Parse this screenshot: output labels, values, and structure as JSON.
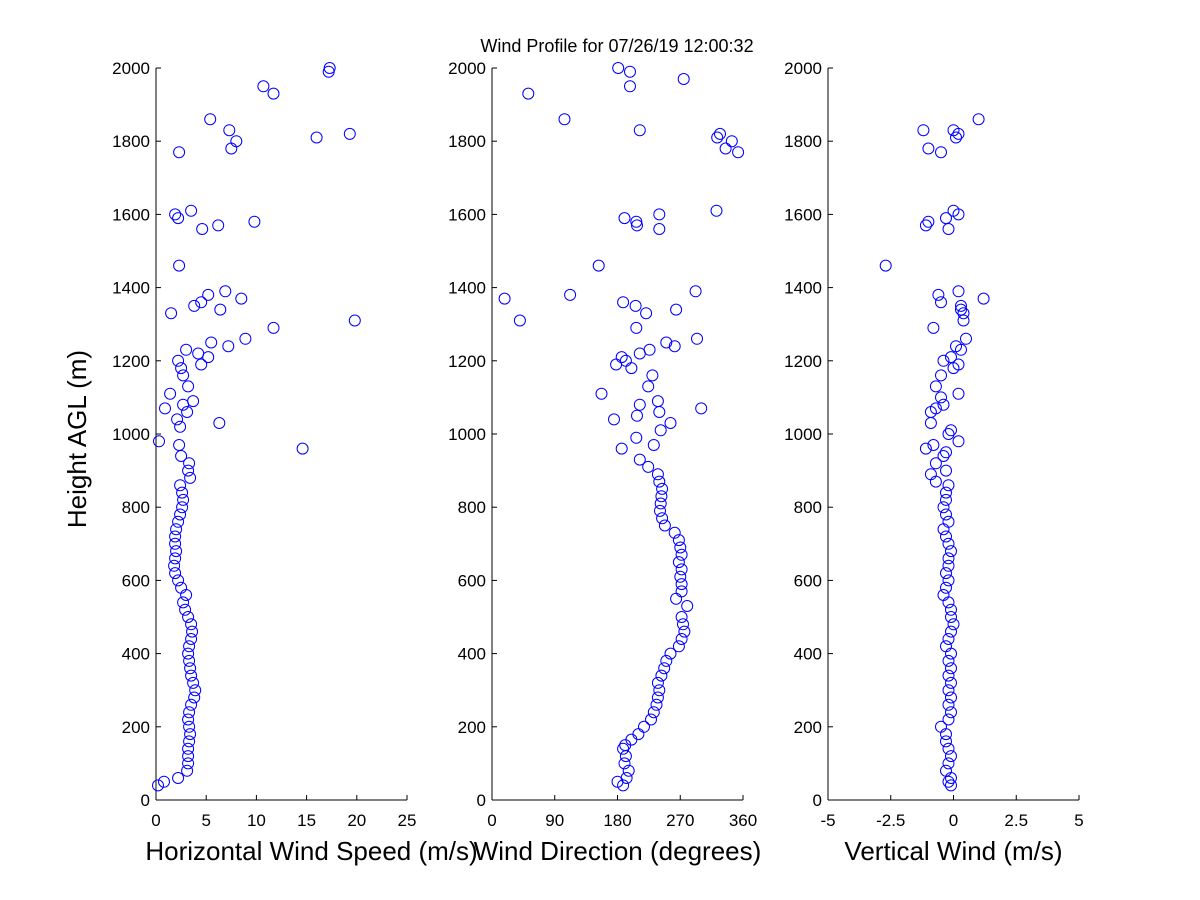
{
  "title": "Wind Profile for  07/26/19 12:00:32",
  "colors": {
    "marker": "#0000ff",
    "axes": "#000000",
    "background": "#ffffff"
  },
  "chart_data": [
    {
      "type": "scatter",
      "xlabel": "Horizontal Wind Speed (m/s)",
      "ylabel": "Height AGL (m)",
      "xlim": [
        0,
        25
      ],
      "ylim": [
        0,
        2000
      ],
      "xticks": [
        "0",
        "5",
        "10",
        "15",
        "20",
        "25"
      ],
      "yticks": [
        "0",
        "200",
        "400",
        "600",
        "800",
        "1000",
        "1200",
        "1400",
        "1600",
        "1800",
        "2000"
      ],
      "points": [
        [
          0.2,
          40
        ],
        [
          0.8,
          50
        ],
        [
          2.2,
          60
        ],
        [
          3.1,
          80
        ],
        [
          3.2,
          100
        ],
        [
          3.2,
          120
        ],
        [
          3.2,
          140
        ],
        [
          3.3,
          160
        ],
        [
          3.4,
          180
        ],
        [
          3.3,
          200
        ],
        [
          3.2,
          220
        ],
        [
          3.3,
          240
        ],
        [
          3.5,
          260
        ],
        [
          3.8,
          280
        ],
        [
          3.9,
          300
        ],
        [
          3.7,
          320
        ],
        [
          3.5,
          340
        ],
        [
          3.4,
          360
        ],
        [
          3.3,
          380
        ],
        [
          3.2,
          400
        ],
        [
          3.3,
          420
        ],
        [
          3.5,
          440
        ],
        [
          3.6,
          460
        ],
        [
          3.5,
          480
        ],
        [
          3.2,
          500
        ],
        [
          2.9,
          520
        ],
        [
          2.7,
          540
        ],
        [
          3.0,
          560
        ],
        [
          2.5,
          580
        ],
        [
          2.2,
          600
        ],
        [
          1.9,
          620
        ],
        [
          1.8,
          640
        ],
        [
          1.9,
          660
        ],
        [
          2.0,
          680
        ],
        [
          1.9,
          700
        ],
        [
          1.9,
          720
        ],
        [
          2.0,
          740
        ],
        [
          2.2,
          760
        ],
        [
          2.4,
          780
        ],
        [
          2.6,
          800
        ],
        [
          2.7,
          820
        ],
        [
          2.6,
          840
        ],
        [
          2.4,
          860
        ],
        [
          3.4,
          880
        ],
        [
          3.2,
          900
        ],
        [
          3.3,
          920
        ],
        [
          2.5,
          940
        ],
        [
          14.6,
          960
        ],
        [
          2.3,
          970
        ],
        [
          0.3,
          980
        ],
        [
          2.4,
          1020
        ],
        [
          6.3,
          1030
        ],
        [
          2.1,
          1040
        ],
        [
          3.1,
          1060
        ],
        [
          0.9,
          1070
        ],
        [
          2.7,
          1080
        ],
        [
          3.7,
          1090
        ],
        [
          1.4,
          1110
        ],
        [
          3.2,
          1130
        ],
        [
          2.7,
          1160
        ],
        [
          2.5,
          1180
        ],
        [
          4.5,
          1190
        ],
        [
          2.2,
          1200
        ],
        [
          5.2,
          1210
        ],
        [
          4.2,
          1220
        ],
        [
          3.0,
          1230
        ],
        [
          7.2,
          1240
        ],
        [
          5.5,
          1250
        ],
        [
          8.9,
          1260
        ],
        [
          11.7,
          1290
        ],
        [
          19.8,
          1310
        ],
        [
          1.5,
          1330
        ],
        [
          6.4,
          1340
        ],
        [
          3.8,
          1350
        ],
        [
          4.5,
          1360
        ],
        [
          8.5,
          1370
        ],
        [
          5.2,
          1380
        ],
        [
          6.9,
          1390
        ],
        [
          2.3,
          1460
        ],
        [
          4.6,
          1560
        ],
        [
          6.2,
          1570
        ],
        [
          9.8,
          1580
        ],
        [
          2.2,
          1590
        ],
        [
          1.9,
          1600
        ],
        [
          3.5,
          1610
        ],
        [
          2.3,
          1770
        ],
        [
          7.5,
          1780
        ],
        [
          8.0,
          1800
        ],
        [
          16.0,
          1810
        ],
        [
          19.3,
          1820
        ],
        [
          7.3,
          1830
        ],
        [
          5.4,
          1860
        ],
        [
          11.7,
          1930
        ],
        [
          10.7,
          1950
        ],
        [
          17.2,
          1990
        ],
        [
          17.3,
          2000
        ]
      ]
    },
    {
      "type": "scatter",
      "xlabel": "Wind Direction (degrees)",
      "xlim": [
        0,
        360
      ],
      "ylim": [
        0,
        2000
      ],
      "xticks": [
        "0",
        "90",
        "180",
        "270",
        "360"
      ],
      "yticks": [
        "0",
        "200",
        "400",
        "600",
        "800",
        "1000",
        "1200",
        "1400",
        "1600",
        "1800",
        "2000"
      ],
      "points": [
        [
          188,
          40
        ],
        [
          180,
          50
        ],
        [
          193,
          60
        ],
        [
          196,
          80
        ],
        [
          190,
          100
        ],
        [
          192,
          120
        ],
        [
          188,
          140
        ],
        [
          191,
          150
        ],
        [
          200,
          165
        ],
        [
          210,
          180
        ],
        [
          218,
          200
        ],
        [
          228,
          220
        ],
        [
          232,
          240
        ],
        [
          236,
          260
        ],
        [
          238,
          280
        ],
        [
          240,
          300
        ],
        [
          238,
          320
        ],
        [
          243,
          340
        ],
        [
          247,
          360
        ],
        [
          250,
          380
        ],
        [
          256,
          400
        ],
        [
          268,
          420
        ],
        [
          272,
          440
        ],
        [
          276,
          460
        ],
        [
          274,
          480
        ],
        [
          272,
          500
        ],
        [
          280,
          530
        ],
        [
          264,
          550
        ],
        [
          272,
          570
        ],
        [
          272,
          590
        ],
        [
          270,
          610
        ],
        [
          272,
          630
        ],
        [
          268,
          650
        ],
        [
          272,
          670
        ],
        [
          270,
          690
        ],
        [
          268,
          710
        ],
        [
          262,
          730
        ],
        [
          248,
          750
        ],
        [
          244,
          770
        ],
        [
          241,
          790
        ],
        [
          242,
          810
        ],
        [
          243,
          830
        ],
        [
          244,
          850
        ],
        [
          240,
          870
        ],
        [
          238,
          890
        ],
        [
          224,
          910
        ],
        [
          212,
          930
        ],
        [
          186,
          960
        ],
        [
          232,
          970
        ],
        [
          207,
          990
        ],
        [
          242,
          1010
        ],
        [
          256,
          1030
        ],
        [
          175,
          1040
        ],
        [
          208,
          1050
        ],
        [
          240,
          1060
        ],
        [
          212,
          1080
        ],
        [
          238,
          1090
        ],
        [
          300,
          1070
        ],
        [
          157,
          1110
        ],
        [
          224,
          1130
        ],
        [
          230,
          1160
        ],
        [
          200,
          1180
        ],
        [
          192,
          1200
        ],
        [
          178,
          1190
        ],
        [
          186,
          1210
        ],
        [
          212,
          1220
        ],
        [
          226,
          1230
        ],
        [
          262,
          1240
        ],
        [
          250,
          1250
        ],
        [
          294,
          1260
        ],
        [
          207,
          1290
        ],
        [
          40,
          1310
        ],
        [
          221,
          1330
        ],
        [
          264,
          1340
        ],
        [
          206,
          1350
        ],
        [
          188,
          1360
        ],
        [
          18,
          1370
        ],
        [
          112,
          1380
        ],
        [
          292,
          1390
        ],
        [
          153,
          1460
        ],
        [
          240,
          1560
        ],
        [
          208,
          1570
        ],
        [
          207,
          1580
        ],
        [
          190,
          1590
        ],
        [
          240,
          1600
        ],
        [
          322,
          1610
        ],
        [
          335,
          1780
        ],
        [
          353,
          1770
        ],
        [
          344,
          1800
        ],
        [
          323,
          1810
        ],
        [
          327,
          1820
        ],
        [
          212,
          1830
        ],
        [
          104,
          1860
        ],
        [
          52,
          1930
        ],
        [
          198,
          1950
        ],
        [
          198,
          1990
        ],
        [
          275,
          1970
        ],
        [
          181,
          2000
        ]
      ]
    },
    {
      "type": "scatter",
      "xlabel": "Vertical Wind (m/s)",
      "xlim": [
        -5,
        5
      ],
      "ylim": [
        0,
        2000
      ],
      "xticks": [
        "-5",
        "-2.5",
        "0",
        "2.5",
        "5"
      ],
      "yticks": [
        "0",
        "200",
        "400",
        "600",
        "800",
        "1000",
        "1200",
        "1400",
        "1600",
        "1800",
        "2000"
      ],
      "points": [
        [
          -0.1,
          40
        ],
        [
          -0.2,
          50
        ],
        [
          -0.1,
          60
        ],
        [
          -0.3,
          80
        ],
        [
          -0.2,
          100
        ],
        [
          -0.1,
          120
        ],
        [
          -0.2,
          140
        ],
        [
          -0.3,
          160
        ],
        [
          -0.3,
          180
        ],
        [
          -0.5,
          200
        ],
        [
          -0.2,
          220
        ],
        [
          -0.1,
          240
        ],
        [
          -0.2,
          260
        ],
        [
          -0.1,
          280
        ],
        [
          -0.2,
          300
        ],
        [
          -0.1,
          320
        ],
        [
          -0.2,
          340
        ],
        [
          -0.1,
          360
        ],
        [
          -0.2,
          380
        ],
        [
          -0.1,
          400
        ],
        [
          -0.3,
          420
        ],
        [
          -0.2,
          440
        ],
        [
          -0.1,
          460
        ],
        [
          0.0,
          480
        ],
        [
          -0.1,
          500
        ],
        [
          -0.1,
          520
        ],
        [
          -0.2,
          540
        ],
        [
          -0.4,
          560
        ],
        [
          -0.3,
          580
        ],
        [
          -0.2,
          600
        ],
        [
          -0.3,
          620
        ],
        [
          -0.2,
          640
        ],
        [
          -0.2,
          660
        ],
        [
          -0.1,
          680
        ],
        [
          -0.2,
          700
        ],
        [
          -0.3,
          720
        ],
        [
          -0.4,
          740
        ],
        [
          -0.2,
          760
        ],
        [
          -0.3,
          780
        ],
        [
          -0.4,
          800
        ],
        [
          -0.3,
          820
        ],
        [
          -0.3,
          840
        ],
        [
          -0.2,
          860
        ],
        [
          -0.7,
          870
        ],
        [
          -0.9,
          890
        ],
        [
          -0.3,
          900
        ],
        [
          -0.7,
          920
        ],
        [
          -0.4,
          940
        ],
        [
          -0.3,
          950
        ],
        [
          -1.1,
          960
        ],
        [
          -0.8,
          970
        ],
        [
          0.2,
          980
        ],
        [
          -0.2,
          1000
        ],
        [
          -0.1,
          1010
        ],
        [
          -0.9,
          1030
        ],
        [
          -0.9,
          1060
        ],
        [
          -0.7,
          1070
        ],
        [
          -0.4,
          1080
        ],
        [
          -0.5,
          1100
        ],
        [
          0.2,
          1110
        ],
        [
          -0.7,
          1130
        ],
        [
          -0.5,
          1160
        ],
        [
          0.0,
          1180
        ],
        [
          0.2,
          1190
        ],
        [
          -0.4,
          1200
        ],
        [
          -0.1,
          1210
        ],
        [
          0.3,
          1230
        ],
        [
          0.1,
          1240
        ],
        [
          0.5,
          1260
        ],
        [
          -0.8,
          1290
        ],
        [
          0.4,
          1310
        ],
        [
          0.4,
          1330
        ],
        [
          0.3,
          1340
        ],
        [
          0.3,
          1350
        ],
        [
          -0.5,
          1360
        ],
        [
          1.2,
          1370
        ],
        [
          -0.6,
          1380
        ],
        [
          0.2,
          1390
        ],
        [
          -2.7,
          1460
        ],
        [
          -0.2,
          1560
        ],
        [
          -1.1,
          1570
        ],
        [
          -1.0,
          1580
        ],
        [
          -0.3,
          1590
        ],
        [
          0.2,
          1600
        ],
        [
          0.0,
          1610
        ],
        [
          -0.5,
          1770
        ],
        [
          -1.0,
          1780
        ],
        [
          0.1,
          1810
        ],
        [
          0.2,
          1820
        ],
        [
          -1.2,
          1830
        ],
        [
          0.0,
          1830
        ],
        [
          1.0,
          1860
        ]
      ]
    }
  ]
}
